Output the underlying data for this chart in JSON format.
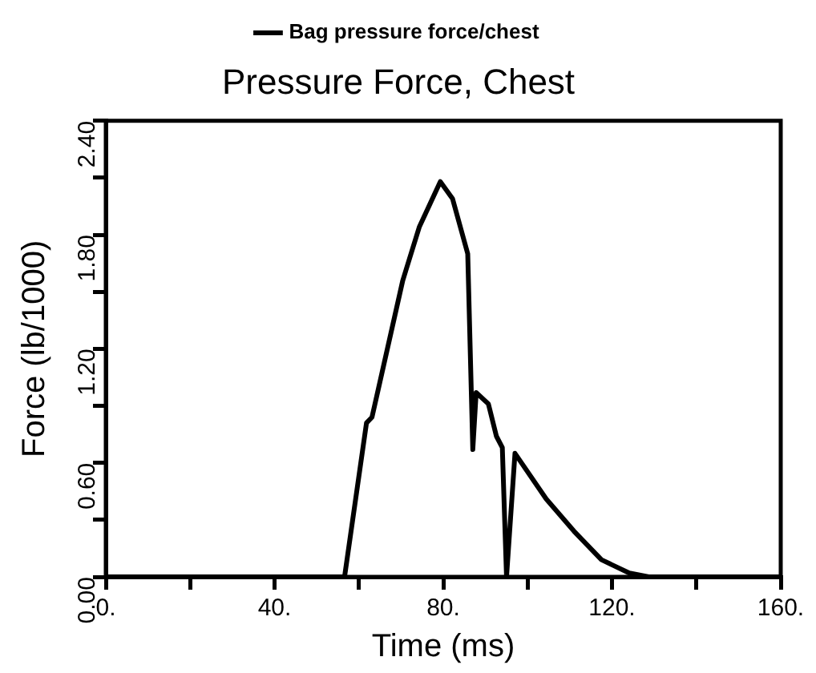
{
  "chart_data": {
    "type": "line",
    "title": "Pressure Force, Chest",
    "xlabel": "Time (ms)",
    "ylabel": "Force (lb/1000)",
    "legend": "top",
    "marker": "none",
    "line_style": "solid",
    "xlim": [
      0,
      160
    ],
    "ylim": [
      0,
      2.4
    ],
    "xticks": [
      {
        "value": 0,
        "label": "0."
      },
      {
        "value": 20,
        "label": null
      },
      {
        "value": 40,
        "label": "40."
      },
      {
        "value": 60,
        "label": null
      },
      {
        "value": 80,
        "label": "80."
      },
      {
        "value": 100,
        "label": null
      },
      {
        "value": 120,
        "label": "120."
      },
      {
        "value": 140,
        "label": null
      },
      {
        "value": 160,
        "label": "160."
      }
    ],
    "yticks": [
      {
        "value": 0,
        "label": "0.00"
      },
      {
        "value": 0.3,
        "label": null
      },
      {
        "value": 0.6,
        "label": "0.60"
      },
      {
        "value": 0.9,
        "label": null
      },
      {
        "value": 1.2,
        "label": "1.20"
      },
      {
        "value": 1.5,
        "label": null
      },
      {
        "value": 1.8,
        "label": "1.80"
      },
      {
        "value": 2.1,
        "label": null
      },
      {
        "value": 2.4,
        "label": "2.40"
      }
    ],
    "series": [
      {
        "name": "Bag pressure force/chest",
        "color": "#000000",
        "x": [
          0,
          56.6,
          61.8,
          63.1,
          70.4,
          74.3,
          79.3,
          82.2,
          85.8,
          87.0,
          87.8,
          90.7,
          92.6,
          94.0,
          95.0,
          97.0,
          104.4,
          111.0,
          117.5,
          124.1,
          128.7,
          160
        ],
        "values": [
          0,
          0,
          0.81,
          0.84,
          1.56,
          1.84,
          2.08,
          1.99,
          1.7,
          0.67,
          0.97,
          0.91,
          0.74,
          0.68,
          0,
          0.65,
          0.41,
          0.24,
          0.09,
          0.02,
          0,
          0
        ]
      }
    ]
  }
}
